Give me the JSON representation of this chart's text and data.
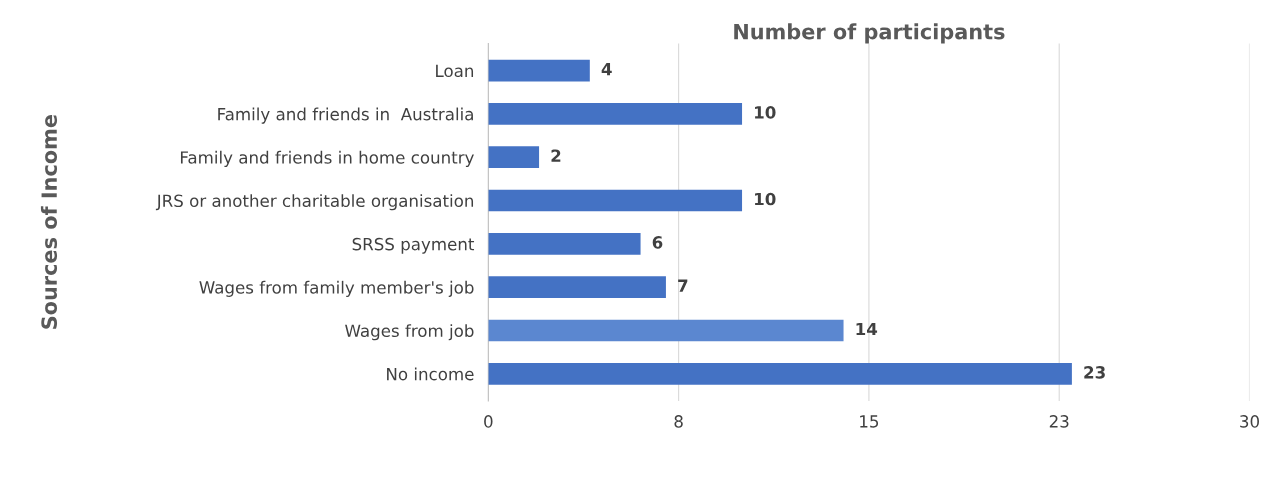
{
  "chart_data": {
    "type": "bar",
    "orientation": "horizontal",
    "title": "Number of participants",
    "ylabel": "Sources of Income",
    "categories": [
      "Loan",
      "Family and friends in  Australia",
      "Family and friends in home country",
      "JRS or another charitable organisation",
      "SRSS payment",
      "Wages from family member's job",
      "Wages from job",
      "No income"
    ],
    "values": [
      4,
      10,
      2,
      10,
      6,
      7,
      14,
      23
    ],
    "colors": [
      "#4472c4",
      "#4472c4",
      "#4472c4",
      "#4472c4",
      "#4472c4",
      "#4472c4",
      "#5b87d0",
      "#4472c4"
    ],
    "xlim": [
      0,
      30
    ],
    "xticks": [
      0,
      {
        "value": 7.5,
        "label": "8"
      },
      15,
      {
        "value": 22.5,
        "label": "23"
      },
      30
    ],
    "grid": "x",
    "data_labels": true,
    "legend": false
  }
}
